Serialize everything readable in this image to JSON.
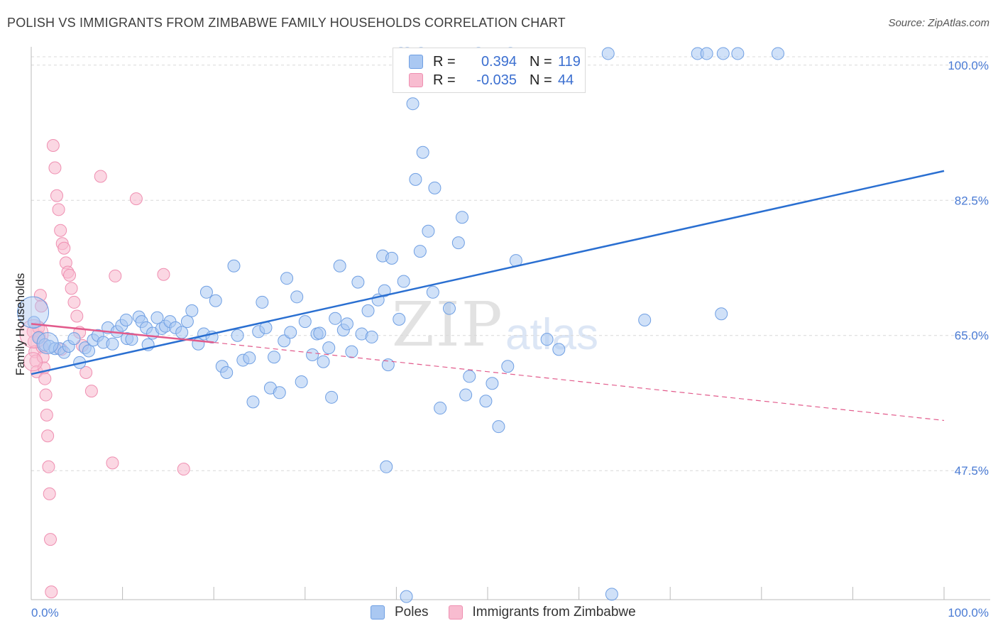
{
  "title": "POLISH VS IMMIGRANTS FROM ZIMBABWE FAMILY HOUSEHOLDS CORRELATION CHART",
  "source": "Source: ZipAtlas.com",
  "watermark": {
    "zip": "ZIP",
    "atlas": "atlas"
  },
  "legend": {
    "poles": {
      "r_label": "R =",
      "r_value": "0.394",
      "n_label": "N =",
      "n_value": "119",
      "color": "#aac8f2"
    },
    "zimbabwe": {
      "r_label": "R =",
      "r_value": "-0.035",
      "n_label": "N =",
      "n_value": "44",
      "color": "#f8bcd0"
    }
  },
  "bottom_legend": {
    "poles": "Poles",
    "zimbabwe": "Immigrants from Zimbabwe"
  },
  "chart_data": {
    "type": "scatter",
    "ylabel": "Family Households",
    "xlabel": "",
    "xlim": [
      0,
      100
    ],
    "ylim": [
      30.8,
      102
    ],
    "x_tick_labels": [
      "0.0%",
      "100.0%"
    ],
    "y_ticks": [
      {
        "value": 47.5,
        "label": "47.5%"
      },
      {
        "value": 65.0,
        "label": "65.0%"
      },
      {
        "value": 82.5,
        "label": "82.5%"
      },
      {
        "value": 100.0,
        "label": "100.0%"
      }
    ],
    "series": [
      {
        "name": "Poles",
        "color": "#6f9fe3",
        "fill": "#aac8f2",
        "trend": {
          "x": [
            0,
            100
          ],
          "y": [
            60.0,
            86.3
          ],
          "style": "solid",
          "color": "#2a6fd1"
        },
        "points": [
          [
            0.3,
            66.7
          ],
          [
            0.8,
            64.7
          ],
          [
            1.5,
            63.8
          ],
          [
            2.0,
            63.6
          ],
          [
            2.6,
            63.3
          ],
          [
            3.1,
            63.3
          ],
          [
            3.6,
            62.8
          ],
          [
            4.1,
            63.6
          ],
          [
            4.7,
            64.6
          ],
          [
            5.3,
            61.5
          ],
          [
            5.9,
            63.4
          ],
          [
            6.3,
            63.0
          ],
          [
            6.8,
            64.4
          ],
          [
            7.3,
            65.0
          ],
          [
            7.9,
            64.1
          ],
          [
            8.4,
            66.0
          ],
          [
            8.9,
            63.9
          ],
          [
            9.4,
            65.5
          ],
          [
            9.9,
            66.3
          ],
          [
            10.4,
            67.0
          ],
          [
            10.5,
            64.6
          ],
          [
            11.0,
            64.5
          ],
          [
            11.8,
            67.4
          ],
          [
            12.1,
            66.8
          ],
          [
            12.6,
            66.0
          ],
          [
            12.8,
            63.8
          ],
          [
            13.3,
            65.3
          ],
          [
            13.8,
            67.3
          ],
          [
            14.3,
            65.9
          ],
          [
            14.7,
            66.2
          ],
          [
            15.2,
            66.8
          ],
          [
            15.8,
            66.0
          ],
          [
            16.5,
            65.4
          ],
          [
            17.1,
            66.8
          ],
          [
            17.6,
            68.2
          ],
          [
            18.3,
            63.9
          ],
          [
            18.9,
            65.2
          ],
          [
            19.2,
            70.6
          ],
          [
            19.8,
            64.8
          ],
          [
            20.2,
            69.5
          ],
          [
            20.9,
            61.0
          ],
          [
            21.4,
            60.2
          ],
          [
            22.2,
            74.0
          ],
          [
            22.6,
            65.0
          ],
          [
            23.2,
            61.8
          ],
          [
            23.9,
            62.1
          ],
          [
            24.3,
            56.4
          ],
          [
            24.9,
            65.5
          ],
          [
            25.3,
            69.3
          ],
          [
            25.7,
            66.0
          ],
          [
            26.2,
            58.2
          ],
          [
            26.6,
            62.2
          ],
          [
            27.2,
            57.6
          ],
          [
            27.7,
            64.3
          ],
          [
            28.0,
            72.4
          ],
          [
            28.4,
            65.4
          ],
          [
            29.1,
            70.0
          ],
          [
            29.6,
            59.0
          ],
          [
            30.0,
            66.8
          ],
          [
            30.8,
            62.5
          ],
          [
            31.3,
            65.2
          ],
          [
            31.6,
            65.3
          ],
          [
            32.0,
            61.6
          ],
          [
            32.6,
            63.4
          ],
          [
            32.9,
            57.0
          ],
          [
            33.3,
            67.2
          ],
          [
            33.8,
            74.0
          ],
          [
            34.2,
            65.7
          ],
          [
            34.6,
            66.5
          ],
          [
            35.1,
            62.9
          ],
          [
            35.8,
            71.9
          ],
          [
            36.2,
            65.2
          ],
          [
            36.9,
            68.2
          ],
          [
            37.3,
            64.8
          ],
          [
            38.0,
            69.6
          ],
          [
            38.5,
            75.3
          ],
          [
            38.7,
            70.8
          ],
          [
            38.9,
            48.0
          ],
          [
            39.1,
            61.2
          ],
          [
            39.5,
            75.0
          ],
          [
            40.3,
            67.1
          ],
          [
            40.8,
            72.0
          ],
          [
            41.1,
            31.2
          ],
          [
            41.8,
            95.0
          ],
          [
            42.1,
            85.2
          ],
          [
            42.6,
            75.9
          ],
          [
            42.9,
            88.7
          ],
          [
            43.5,
            78.5
          ],
          [
            44.0,
            70.6
          ],
          [
            44.2,
            84.1
          ],
          [
            44.8,
            55.6
          ],
          [
            45.8,
            68.5
          ],
          [
            46.8,
            77.0
          ],
          [
            47.2,
            80.3
          ],
          [
            47.6,
            57.3
          ],
          [
            48.0,
            59.7
          ],
          [
            49.8,
            56.5
          ],
          [
            50.5,
            58.8
          ],
          [
            51.2,
            53.2
          ],
          [
            52.2,
            61.0
          ],
          [
            53.1,
            74.7
          ],
          [
            56.5,
            64.5
          ],
          [
            57.8,
            63.2
          ],
          [
            63.6,
            31.5
          ],
          [
            75.6,
            67.8
          ],
          [
            67.2,
            67.0
          ],
          [
            40.5,
            101.5
          ],
          [
            41.2,
            101.5
          ],
          [
            42.7,
            101.5
          ],
          [
            49.0,
            101.5
          ],
          [
            52.5,
            101.5
          ],
          [
            63.2,
            101.5
          ],
          [
            73.0,
            101.5
          ],
          [
            74.0,
            101.5
          ],
          [
            75.8,
            101.5
          ],
          [
            77.4,
            101.5
          ],
          [
            81.8,
            101.5
          ]
        ]
      },
      {
        "name": "Immigrants from Zimbabwe",
        "color": "#ef8fb1",
        "fill": "#f8bcd0",
        "trend": {
          "x": [
            0,
            20
          ],
          "y": [
            66.5,
            64.1
          ],
          "style": "solid",
          "color": "#e25a8b",
          "extension": {
            "x": [
              20,
              100
            ],
            "y": [
              64.1,
              54.0
            ],
            "style": "dashed"
          }
        },
        "points": [
          [
            0.2,
            65.5
          ],
          [
            0.3,
            64.2
          ],
          [
            0.4,
            62.9
          ],
          [
            0.5,
            61.7
          ],
          [
            0.6,
            60.3
          ],
          [
            0.8,
            66.0
          ],
          [
            0.9,
            64.8
          ],
          [
            1.0,
            70.2
          ],
          [
            1.1,
            68.8
          ],
          [
            1.2,
            63.5
          ],
          [
            1.3,
            62.2
          ],
          [
            1.4,
            60.8
          ],
          [
            1.5,
            59.4
          ],
          [
            1.6,
            57.3
          ],
          [
            1.7,
            54.7
          ],
          [
            1.8,
            52.0
          ],
          [
            1.9,
            48.0
          ],
          [
            2.0,
            44.5
          ],
          [
            2.1,
            38.6
          ],
          [
            2.2,
            31.8
          ],
          [
            2.4,
            89.6
          ],
          [
            2.6,
            86.7
          ],
          [
            2.8,
            83.1
          ],
          [
            3.0,
            81.3
          ],
          [
            3.2,
            78.6
          ],
          [
            3.4,
            76.9
          ],
          [
            3.6,
            76.3
          ],
          [
            3.8,
            74.4
          ],
          [
            4.0,
            73.2
          ],
          [
            4.2,
            72.8
          ],
          [
            4.4,
            71.1
          ],
          [
            4.7,
            69.3
          ],
          [
            5.0,
            67.5
          ],
          [
            5.3,
            65.4
          ],
          [
            5.6,
            63.7
          ],
          [
            6.0,
            60.2
          ],
          [
            6.6,
            57.8
          ],
          [
            7.6,
            85.6
          ],
          [
            8.9,
            48.5
          ],
          [
            9.2,
            72.7
          ],
          [
            11.5,
            82.7
          ],
          [
            14.5,
            72.9
          ],
          [
            16.7,
            47.7
          ],
          [
            3.3,
            63.2
          ]
        ]
      }
    ]
  }
}
